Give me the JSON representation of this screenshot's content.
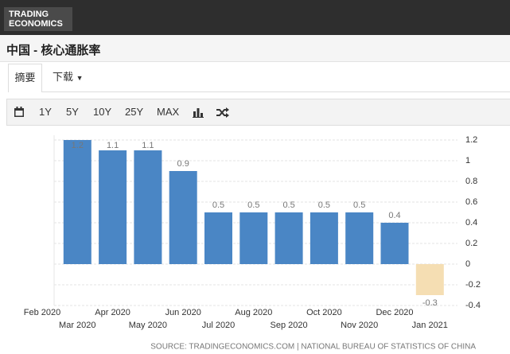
{
  "header": {
    "logo_line1": "TRADING",
    "logo_line2": "ECONOMICS"
  },
  "title": "中国 - 核心通胀率",
  "tabs": [
    "摘要",
    "下载"
  ],
  "toolbar": [
    "1Y",
    "5Y",
    "10Y",
    "25Y",
    "MAX"
  ],
  "chart_data": {
    "type": "bar",
    "categories": [
      "Feb 2020",
      "Mar 2020",
      "Apr 2020",
      "May 2020",
      "Jun 2020",
      "Jul 2020",
      "Aug 2020",
      "Sep 2020",
      "Oct 2020",
      "Nov 2020",
      "Dec 2020",
      "Jan 2021"
    ],
    "values": [
      null,
      1.2,
      1.1,
      1.1,
      0.9,
      0.5,
      0.5,
      0.5,
      0.5,
      0.5,
      0.4,
      -0.3
    ],
    "color": "#4a86c5",
    "negative_color": "#f5deb3",
    "ylim": [
      -0.4,
      1.2
    ],
    "yticks": [
      -0.4,
      -0.2,
      0,
      0.2,
      0.4,
      0.6,
      0.8,
      1,
      1.2
    ],
    "grid": true
  },
  "source": "SOURCE: TRADINGECONOMICS.COM | NATIONAL BUREAU OF STATISTICS OF CHINA"
}
